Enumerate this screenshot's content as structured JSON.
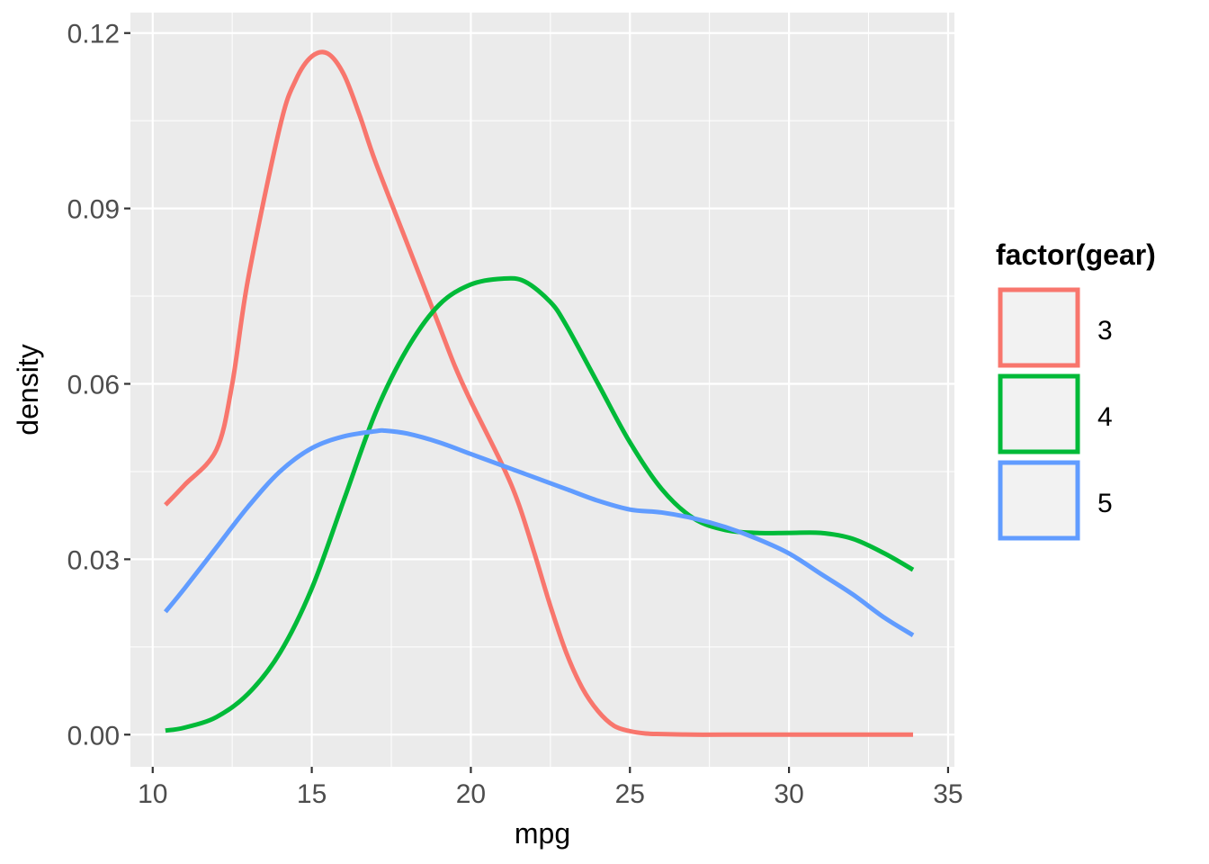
{
  "chart_data": {
    "type": "line",
    "xlabel": "mpg",
    "ylabel": "density",
    "xlim": [
      9.3,
      35.2
    ],
    "ylim": [
      -0.0055,
      0.1235
    ],
    "x_ticks": [
      10,
      15,
      20,
      25,
      30,
      35
    ],
    "x_tick_labels": [
      "10",
      "15",
      "20",
      "25",
      "30",
      "35"
    ],
    "y_ticks": [
      0,
      0.03,
      0.06,
      0.09,
      0.12
    ],
    "y_tick_labels": [
      "0.00",
      "0.03",
      "0.06",
      "0.09",
      "0.12"
    ],
    "grid": true,
    "legend": {
      "title": "factor(gear)",
      "position": "right"
    },
    "series": [
      {
        "name": "3",
        "color": "#F8766D",
        "x": [
          10.4,
          11.0,
          12.0,
          12.5,
          13.0,
          14.0,
          14.5,
          15.0,
          15.5,
          16.0,
          16.5,
          17.0,
          18.0,
          19.0,
          19.5,
          20.0,
          21.0,
          21.5,
          22.0,
          22.5,
          23.0,
          23.5,
          24.0,
          24.5,
          25.0,
          25.5,
          26.0,
          27.0,
          28.0,
          30.0,
          33.9
        ],
        "y": [
          0.0393,
          0.0427,
          0.0487,
          0.06,
          0.078,
          0.104,
          0.112,
          0.116,
          0.1165,
          0.113,
          0.106,
          0.098,
          0.084,
          0.07,
          0.063,
          0.057,
          0.046,
          0.0395,
          0.031,
          0.022,
          0.014,
          0.008,
          0.004,
          0.0015,
          0.0006,
          0.0002,
          0.0001,
          0.0,
          0.0,
          0.0,
          0.0
        ]
      },
      {
        "name": "4",
        "color": "#00BA38",
        "x": [
          10.4,
          11.0,
          12.0,
          13.0,
          14.0,
          15.0,
          16.0,
          17.0,
          18.0,
          19.0,
          20.0,
          21.0,
          21.7,
          22.5,
          23.0,
          24.0,
          25.0,
          26.0,
          27.0,
          28.0,
          29.0,
          30.0,
          31.0,
          32.0,
          33.0,
          33.9
        ],
        "y": [
          0.0007,
          0.0012,
          0.003,
          0.007,
          0.014,
          0.025,
          0.04,
          0.055,
          0.066,
          0.0735,
          0.077,
          0.078,
          0.0775,
          0.074,
          0.07,
          0.06,
          0.05,
          0.042,
          0.037,
          0.035,
          0.0345,
          0.0345,
          0.0345,
          0.0335,
          0.031,
          0.0282
        ]
      },
      {
        "name": "5",
        "color": "#619CFF",
        "x": [
          10.4,
          11.0,
          12.0,
          13.0,
          14.0,
          15.0,
          16.0,
          17.0,
          17.3,
          18.0,
          19.0,
          20.0,
          21.0,
          22.0,
          23.0,
          24.0,
          25.0,
          26.0,
          27.0,
          28.0,
          29.0,
          30.0,
          31.0,
          32.0,
          33.0,
          33.9
        ],
        "y": [
          0.021,
          0.025,
          0.032,
          0.039,
          0.045,
          0.049,
          0.051,
          0.0519,
          0.052,
          0.0515,
          0.05,
          0.048,
          0.046,
          0.044,
          0.042,
          0.04,
          0.0385,
          0.038,
          0.037,
          0.0355,
          0.0335,
          0.031,
          0.0275,
          0.024,
          0.02,
          0.017
        ]
      }
    ]
  }
}
